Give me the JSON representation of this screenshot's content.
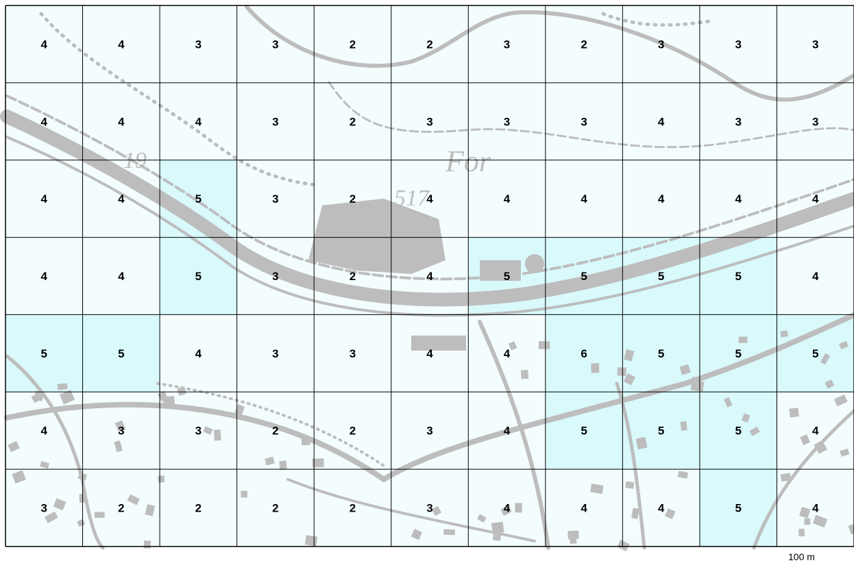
{
  "map": {
    "grid": [
      [
        4,
        4,
        3,
        3,
        2,
        2,
        3,
        2,
        3,
        3,
        3
      ],
      [
        4,
        4,
        4,
        3,
        2,
        3,
        3,
        3,
        4,
        3,
        3
      ],
      [
        4,
        4,
        5,
        3,
        2,
        4,
        4,
        4,
        4,
        4,
        4
      ],
      [
        4,
        4,
        5,
        3,
        2,
        4,
        5,
        5,
        5,
        5,
        4
      ],
      [
        5,
        5,
        4,
        3,
        3,
        4,
        4,
        6,
        5,
        5,
        5
      ],
      [
        4,
        3,
        3,
        2,
        2,
        3,
        4,
        5,
        5,
        5,
        4
      ],
      [
        3,
        2,
        2,
        2,
        2,
        3,
        4,
        4,
        4,
        5,
        4
      ]
    ],
    "highlight_threshold": 5,
    "colors": {
      "base_cell": "#f3fdfe",
      "highlight_cell": "#d9f9fb",
      "grid_line": "#000000",
      "map_features": "#bdbdbd",
      "label_text": "#000000"
    },
    "map_text": [
      "19",
      "For",
      "517"
    ],
    "scale_label": "100 m"
  }
}
